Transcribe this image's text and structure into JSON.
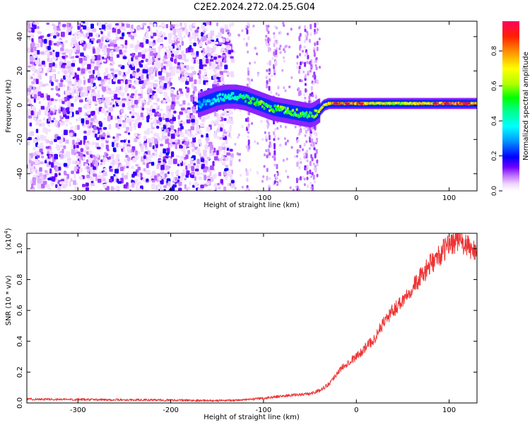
{
  "title": "C2E2.2024.272.04.25.G04",
  "chart_data": [
    {
      "type": "heatmap",
      "xlabel": "Height of straight line (km)",
      "ylabel": "Frequency (Hz)",
      "xlim": [
        -355,
        130
      ],
      "ylim": [
        -50,
        49
      ],
      "xticks": [
        "-300",
        "-200",
        "-100",
        "0",
        "100"
      ],
      "yticks": [
        "40",
        "20",
        "0",
        "-20",
        "-40"
      ],
      "grid": false,
      "colorbar": {
        "label": "Normalized spectral amplitude",
        "range": [
          0.0,
          0.97
        ],
        "ticks": [
          "0.0",
          "0.2",
          "0.4",
          "0.6",
          "0.8"
        ],
        "colormap": "rainbow"
      },
      "noise_region_x": [
        -355,
        -135
      ],
      "sparse_region_x": [
        -135,
        -40
      ],
      "signal_track": {
        "x": [
          -170,
          -160,
          -150,
          -140,
          -130,
          -120,
          -110,
          -100,
          -90,
          -80,
          -70,
          -60,
          -50,
          -45,
          -40,
          -35,
          -30,
          -20,
          -10,
          0,
          20,
          40,
          60,
          80,
          100,
          120,
          130
        ],
        "frequency": [
          0,
          2,
          4,
          5,
          5,
          4,
          2,
          0,
          -2,
          -3,
          -4,
          -5,
          -6,
          -5,
          -3,
          0,
          1,
          1,
          1,
          1,
          1,
          1,
          1,
          1,
          1,
          1,
          1
        ],
        "amplitude": [
          0.3,
          0.35,
          0.4,
          0.45,
          0.5,
          0.55,
          0.6,
          0.6,
          0.62,
          0.62,
          0.6,
          0.58,
          0.55,
          0.6,
          0.7,
          0.8,
          0.85,
          0.9,
          0.85,
          0.9,
          0.75,
          0.7,
          0.75,
          0.8,
          0.95,
          0.9,
          0.8
        ]
      }
    },
    {
      "type": "line",
      "xlabel": "Height of straight line (km)",
      "ylabel": "SNR (10 * v/v)",
      "ylabel_scale": "(x10",
      "ylabel_scale_exp": "4",
      "ylabel_scale_close": ")",
      "xlim": [
        -355,
        130
      ],
      "ylim": [
        0.0,
        1.1
      ],
      "xticks": [
        "-300",
        "-200",
        "-100",
        "0",
        "100"
      ],
      "yticks": [
        "0.0",
        "0.2",
        "0.4",
        "0.6",
        "0.8",
        "1.0"
      ],
      "grid": false,
      "color": "#ee3333",
      "series": [
        {
          "x": [
            -355,
            -300,
            -250,
            -200,
            -150,
            -120,
            -100,
            -80,
            -60,
            -50,
            -40,
            -30,
            -20,
            -10,
            0,
            10,
            20,
            30,
            40,
            50,
            60,
            70,
            80,
            90,
            100,
            110,
            120,
            130
          ],
          "values": [
            0.025,
            0.022,
            0.02,
            0.018,
            0.015,
            0.02,
            0.03,
            0.045,
            0.055,
            0.06,
            0.08,
            0.12,
            0.2,
            0.26,
            0.3,
            0.36,
            0.42,
            0.53,
            0.6,
            0.67,
            0.75,
            0.82,
            0.9,
            0.96,
            1.03,
            1.06,
            1.01,
            0.98
          ]
        }
      ]
    }
  ]
}
